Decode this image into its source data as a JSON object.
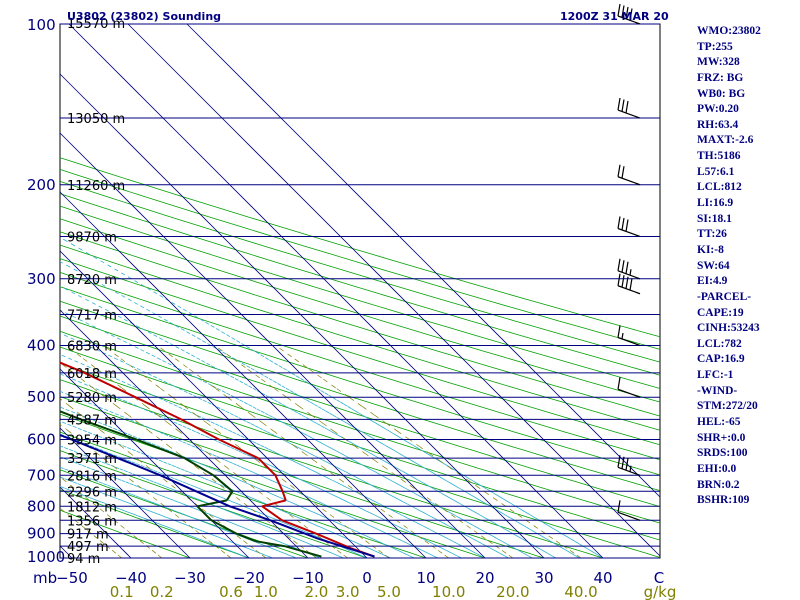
{
  "header": {
    "station": "U3802 (23802) Sounding",
    "time": "1200Z 31 MAR 20"
  },
  "chart_data": {
    "type": "skew-t log-p",
    "pressure_axis": {
      "label": "mb",
      "range_mb": [
        100,
        1000
      ],
      "scale": "log",
      "ticks": [
        100,
        200,
        300,
        400,
        500,
        600,
        700,
        800,
        900,
        1000
      ]
    },
    "temperature_axis": {
      "unit": "C",
      "ticks": [
        -50,
        -40,
        -30,
        -20,
        -10,
        0,
        10,
        20,
        30,
        40
      ],
      "tick_labels": [
        "−50",
        "−40",
        "−30",
        "−20",
        "−10",
        "0",
        "10",
        "20",
        "30",
        "40"
      ],
      "unit_label": "C",
      "skew": "45-degree"
    },
    "mixing_ratio_axis": {
      "unit": "g/kg",
      "values": [
        0.1,
        0.2,
        0.6,
        1.0,
        2.0,
        3.0,
        5.0,
        10.0,
        20.0,
        40.0
      ],
      "labels": [
        "0.1",
        "0.2",
        "0.6",
        "1.0",
        "2.0",
        "3.0",
        "5.0",
        "10.0",
        "20.0",
        "40.0"
      ]
    },
    "height_levels": [
      {
        "p": 100,
        "h": "15570 m"
      },
      {
        "p": 150,
        "h": "13050 m"
      },
      {
        "p": 200,
        "h": "11260 m"
      },
      {
        "p": 250,
        "h": "9870 m"
      },
      {
        "p": 300,
        "h": "8720 m"
      },
      {
        "p": 350,
        "h": "7717 m"
      },
      {
        "p": 400,
        "h": "6830 m"
      },
      {
        "p": 450,
        "h": "6018 m"
      },
      {
        "p": 500,
        "h": "5280 m"
      },
      {
        "p": 550,
        "h": "4587 m"
      },
      {
        "p": 600,
        "h": "3954 m"
      },
      {
        "p": 650,
        "h": "3371 m"
      },
      {
        "p": 700,
        "h": "2816 m"
      },
      {
        "p": 750,
        "h": "2296 m"
      },
      {
        "p": 800,
        "h": "1812 m"
      },
      {
        "p": 850,
        "h": "1356 m"
      },
      {
        "p": 900,
        "h": "917 m"
      },
      {
        "p": 950,
        "h": "497 m"
      },
      {
        "p": 1000,
        "h": "94 m"
      }
    ],
    "series": [
      {
        "name": "Temperature",
        "color": "#c00000",
        "points": [
          [
            994,
            1.5
          ],
          [
            960,
            -1.0
          ],
          [
            900,
            -4.5
          ],
          [
            850,
            -8.0
          ],
          [
            800,
            -9.0
          ],
          [
            780,
            -4.0
          ],
          [
            750,
            -3.0
          ],
          [
            700,
            -1.5
          ],
          [
            650,
            -1.5
          ],
          [
            600,
            -5.0
          ],
          [
            550,
            -8.0
          ],
          [
            500,
            -12.0
          ],
          [
            450,
            -16.5
          ],
          [
            400,
            -23.0
          ],
          [
            350,
            -29.0
          ],
          [
            320,
            -33.0
          ],
          [
            300,
            -38.0
          ],
          [
            280,
            -42.0
          ],
          [
            250,
            -47.0
          ],
          [
            220,
            -50.0
          ],
          [
            200,
            -51.0
          ],
          [
            180,
            -52.0
          ],
          [
            150,
            -57.0
          ],
          [
            120,
            -64.0
          ],
          [
            100,
            -68.0
          ]
        ]
      },
      {
        "name": "Dewpoint",
        "color": "#004000",
        "points": [
          [
            994,
            -7.5
          ],
          [
            950,
            -12.0
          ],
          [
            930,
            -16.0
          ],
          [
            900,
            -18.0
          ],
          [
            850,
            -20.0
          ],
          [
            800,
            -20.0
          ],
          [
            780,
            -14.0
          ],
          [
            750,
            -11.5
          ],
          [
            700,
            -12.0
          ],
          [
            650,
            -14.0
          ],
          [
            600,
            -19.0
          ],
          [
            550,
            -25.0
          ],
          [
            500,
            -31.0
          ],
          [
            450,
            -37.0
          ],
          [
            400,
            -42.5
          ],
          [
            350,
            -48.0
          ],
          [
            320,
            -52.0
          ],
          [
            300,
            -57.0
          ],
          [
            280,
            -59.0
          ],
          [
            250,
            -63.0
          ],
          [
            220,
            -66.0
          ],
          [
            200,
            -66.0
          ],
          [
            180,
            -67.0
          ],
          [
            150,
            -72.0
          ],
          [
            120,
            -77.0
          ],
          [
            100,
            -80.0
          ]
        ]
      },
      {
        "name": "Parcel",
        "color": "#000090",
        "points": [
          [
            994,
            1.5
          ],
          [
            920,
            -5.0
          ],
          [
            850,
            -10.0
          ],
          [
            800,
            -14.5
          ],
          [
            700,
            -21.0
          ],
          [
            600,
            -30.0
          ],
          [
            500,
            -41.5
          ],
          [
            400,
            -56.0
          ],
          [
            300,
            -76.0
          ],
          [
            250,
            -89.0
          ],
          [
            200,
            -105.0
          ],
          [
            150,
            -126.0
          ],
          [
            130,
            -137.0
          ]
        ]
      }
    ],
    "wind_barbs": [
      {
        "p": 100,
        "speed_kt": 40
      },
      {
        "p": 150,
        "speed_kt": 30
      },
      {
        "p": 200,
        "speed_kt": 20
      },
      {
        "p": 250,
        "speed_kt": 30
      },
      {
        "p": 300,
        "speed_kt": 35
      },
      {
        "p": 320,
        "speed_kt": 40
      },
      {
        "p": 400,
        "speed_kt": 15
      },
      {
        "p": 500,
        "speed_kt": 10
      },
      {
        "p": 700,
        "speed_kt": 35
      },
      {
        "p": 850,
        "speed_kt": 10
      }
    ]
  },
  "indices": [
    "WMO:23802",
    "TP:255",
    "MW:328",
    "FRZ: BG",
    "WB0: BG",
    "PW:0.20",
    "RH:63.4",
    "MAXT:-2.6",
    "TH:5186",
    "L57:6.1",
    "LCL:812",
    "LI:16.9",
    "SI:18.1",
    "TT:26",
    "KI:-8",
    "SW:64",
    "EI:4.9",
    "-PARCEL-",
    "CAPE:19",
    "CINH:53243",
    "LCL:782",
    "CAP:16.9",
    "LFC:-1",
    "-WIND-",
    "STM:272/20",
    "HEL:-65",
    "SHR+:0.0",
    "SRDS:100",
    "EHI:0.0",
    "BRN:0.2",
    "BSHR:109"
  ]
}
